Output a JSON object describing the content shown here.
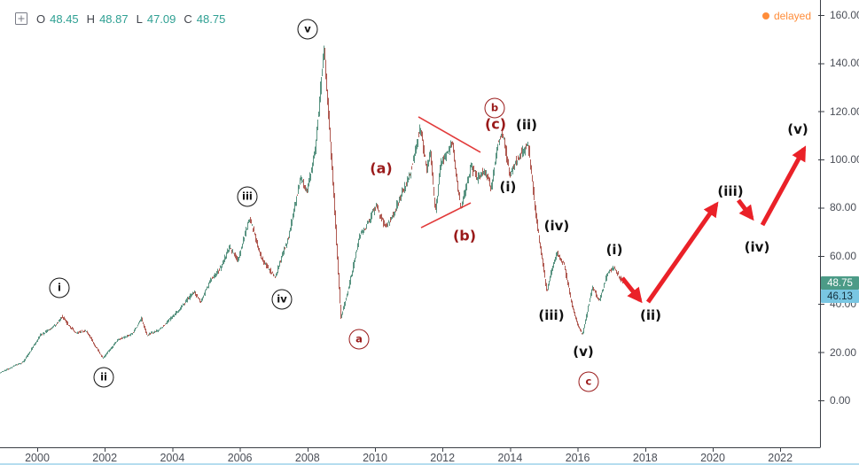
{
  "header": {
    "plus_icon": "plus-box-icon",
    "ohlc": {
      "o_label": "O",
      "o_value": "48.45",
      "h_label": "H",
      "h_value": "48.87",
      "l_label": "L",
      "l_value": "47.09",
      "c_label": "C",
      "c_value": "48.75"
    },
    "delayed_badge": {
      "label": "delayed"
    }
  },
  "colors": {
    "up_candle": "#5a9482",
    "down_candle": "#b05a52",
    "axis_text": "#4a4e57",
    "axis_line": "#3a3e45",
    "arrow_red": "#ea2128",
    "trendline_red": "#e23b3b",
    "wave_black": "#111111",
    "wave_red": "#9a1a1a",
    "delayed_orange": "#ff8d3a",
    "legend_label": "#42454d",
    "legend_value": "#2fa093",
    "tag_close_bg": "#4c9b87",
    "tag_close_fg": "#ffffff",
    "tag_secondary_bg": "#79c6e2",
    "tag_secondary_fg": "#16313d"
  },
  "y_axis": {
    "tick_labels": [
      "160.00",
      "140.00",
      "120.00",
      "100.00",
      "80.00",
      "60.00",
      "40.00",
      "20.00",
      "0.00"
    ],
    "tick_values": [
      160,
      140,
      120,
      100,
      80,
      60,
      40,
      20,
      0
    ]
  },
  "x_axis": {
    "tick_labels": [
      "2000",
      "2002",
      "2004",
      "2006",
      "2008",
      "2010",
      "2012",
      "2014",
      "2016",
      "2018",
      "2020",
      "2022"
    ],
    "tick_values": [
      2000,
      2002,
      2004,
      2006,
      2008,
      2010,
      2012,
      2014,
      2016,
      2018,
      2020,
      2022
    ]
  },
  "price_tags": [
    {
      "name": "last-price-tag",
      "text": "48.75",
      "price": 48.75,
      "bg": "#4c9b87",
      "fg": "#ffffff",
      "stack_top": 312
    },
    {
      "name": "secondary-price-tag",
      "text": "46.13",
      "price": 46.13,
      "bg": "#79c6e2",
      "fg": "#16313d",
      "stack_top": 327
    }
  ],
  "chart_data": {
    "type": "candlestick",
    "title": "",
    "xlabel": "",
    "ylabel": "",
    "x_range": [
      1998.9,
      2023.3
    ],
    "y_range": [
      0,
      160
    ],
    "grid": false,
    "legend_position": "none",
    "ohlc_readout": {
      "open": 48.45,
      "high": 48.87,
      "low": 47.09,
      "close": 48.75
    },
    "price_waypoints": [
      [
        1998.9,
        11.5
      ],
      [
        1999.6,
        16
      ],
      [
        2000.1,
        27
      ],
      [
        2000.55,
        31
      ],
      [
        2000.75,
        35
      ],
      [
        2000.95,
        31
      ],
      [
        2001.15,
        28
      ],
      [
        2001.45,
        29
      ],
      [
        2001.95,
        17.5
      ],
      [
        2002.4,
        25
      ],
      [
        2002.85,
        28
      ],
      [
        2003.1,
        34
      ],
      [
        2003.25,
        27
      ],
      [
        2003.6,
        29
      ],
      [
        2004.1,
        36
      ],
      [
        2004.65,
        45
      ],
      [
        2004.85,
        41
      ],
      [
        2005.15,
        50
      ],
      [
        2005.45,
        55
      ],
      [
        2005.7,
        64
      ],
      [
        2005.95,
        58
      ],
      [
        2006.3,
        76
      ],
      [
        2006.65,
        59
      ],
      [
        2007.05,
        51
      ],
      [
        2007.45,
        68
      ],
      [
        2007.8,
        92
      ],
      [
        2008.0,
        87
      ],
      [
        2008.25,
        105
      ],
      [
        2008.5,
        146
      ],
      [
        2008.75,
        95
      ],
      [
        2009.0,
        34
      ],
      [
        2009.25,
        48
      ],
      [
        2009.55,
        68
      ],
      [
        2009.85,
        75
      ],
      [
        2010.05,
        81
      ],
      [
        2010.3,
        72
      ],
      [
        2010.55,
        77
      ],
      [
        2010.8,
        86
      ],
      [
        2011.05,
        94
      ],
      [
        2011.35,
        113
      ],
      [
        2011.55,
        96
      ],
      [
        2011.65,
        104
      ],
      [
        2011.8,
        77
      ],
      [
        2011.95,
        98
      ],
      [
        2012.1,
        101
      ],
      [
        2012.3,
        107
      ],
      [
        2012.55,
        79
      ],
      [
        2012.85,
        97
      ],
      [
        2013.05,
        92
      ],
      [
        2013.25,
        96
      ],
      [
        2013.45,
        88
      ],
      [
        2013.65,
        107
      ],
      [
        2013.8,
        111
      ],
      [
        2014.0,
        93
      ],
      [
        2014.15,
        99
      ],
      [
        2014.3,
        102
      ],
      [
        2014.55,
        106
      ],
      [
        2014.8,
        74
      ],
      [
        2015.1,
        45
      ],
      [
        2015.2,
        52
      ],
      [
        2015.4,
        61
      ],
      [
        2015.6,
        57
      ],
      [
        2015.85,
        39
      ],
      [
        2016.0,
        32
      ],
      [
        2016.15,
        27
      ],
      [
        2016.45,
        47
      ],
      [
        2016.65,
        41
      ],
      [
        2016.9,
        53
      ],
      [
        2017.1,
        55
      ],
      [
        2017.3,
        50
      ],
      [
        2017.45,
        48.75
      ]
    ],
    "wave_annotations": [
      {
        "text": "i",
        "style": "circle-black",
        "year": 2000.656,
        "price": 46.7
      },
      {
        "text": "ii",
        "style": "circle-black",
        "year": 2001.969,
        "price": 9.6
      },
      {
        "text": "iii",
        "style": "circle-black",
        "year": 2006.22,
        "price": 84.6
      },
      {
        "text": "iv",
        "style": "circle-black",
        "year": 2007.244,
        "price": 41.9
      },
      {
        "text": "v",
        "style": "circle-black",
        "year": 2008.005,
        "price": 154.1
      },
      {
        "text": "a",
        "style": "circle-red",
        "year": 2009.528,
        "price": 25.4
      },
      {
        "text": "b",
        "style": "circle-red",
        "year": 2013.543,
        "price": 121.4
      },
      {
        "text": "c",
        "style": "circle-red",
        "year": 2016.325,
        "price": 7.7
      },
      {
        "text": "(a)",
        "style": "plain-red",
        "year": 2010.184,
        "price": 96.4
      },
      {
        "text": "(b)",
        "style": "plain-red",
        "year": 2012.651,
        "price": 68.4
      },
      {
        "text": "(c)",
        "style": "plain-red",
        "year": 2013.57,
        "price": 114.7
      },
      {
        "text": "(i)",
        "style": "plain-black",
        "year": 2013.937,
        "price": 88.6
      },
      {
        "text": "(ii)",
        "style": "plain-black",
        "year": 2014.488,
        "price": 114.4
      },
      {
        "text": "(iv)",
        "style": "plain-black",
        "year": 2015.38,
        "price": 72.5
      },
      {
        "text": "(iii)",
        "style": "plain-black",
        "year": 2015.223,
        "price": 35.3
      },
      {
        "text": "(v)",
        "style": "plain-black",
        "year": 2016.168,
        "price": 20.2
      },
      {
        "text": "(i)",
        "style": "plain-black",
        "year": 2017.087,
        "price": 62.5
      },
      {
        "text": "(ii)",
        "style": "plain-black",
        "year": 2018.163,
        "price": 35.3
      },
      {
        "text": "(iii)",
        "style": "plain-black",
        "year": 2020.525,
        "price": 86.8
      },
      {
        "text": "(iv)",
        "style": "plain-black",
        "year": 2021.312,
        "price": 63.6
      },
      {
        "text": "(v)",
        "style": "plain-black",
        "year": 2022.52,
        "price": 112.5
      }
    ],
    "trendlines": [
      {
        "from": [
          2011.286,
          117.7
        ],
        "to": [
          2013.123,
          103.0
        ]
      },
      {
        "from": [
          2011.365,
          71.7
        ],
        "to": [
          2012.835,
          82.0
        ]
      }
    ],
    "projection_arrows": [
      {
        "from": [
          2017.323,
          50.8
        ],
        "to": [
          2017.848,
          41.6
        ]
      },
      {
        "from": [
          2018.084,
          40.8
        ],
        "to": [
          2020.105,
          81.3
        ]
      },
      {
        "from": [
          2020.76,
          83.1
        ],
        "to": [
          2021.155,
          75.8
        ]
      },
      {
        "from": [
          2021.47,
          72.8
        ],
        "to": [
          2022.704,
          104.4
        ]
      }
    ]
  }
}
